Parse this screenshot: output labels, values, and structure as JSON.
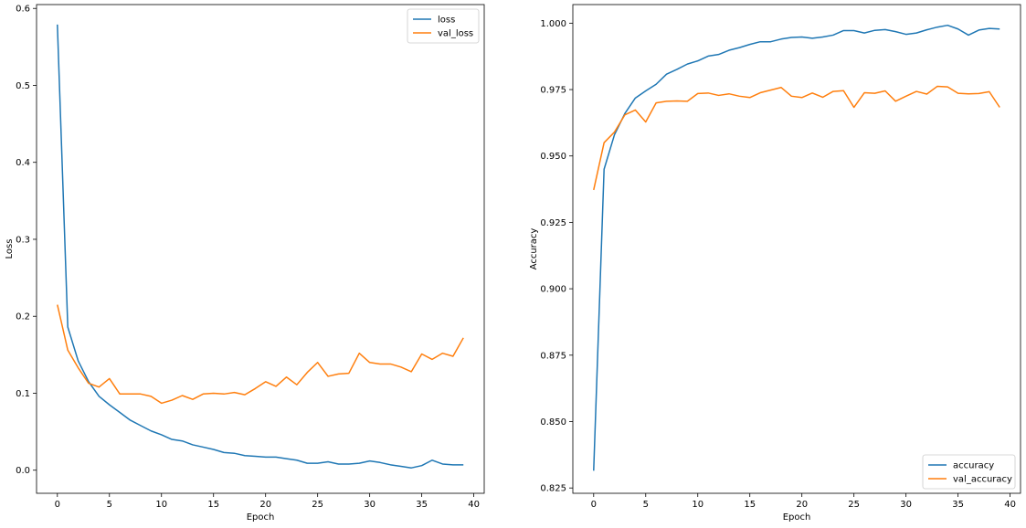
{
  "colors": {
    "series1": "#1f77b4",
    "series2": "#ff7f0e"
  },
  "chart_data": [
    {
      "type": "line",
      "xlabel": "Epoch",
      "ylabel": "Loss",
      "xlim": [
        -2,
        41
      ],
      "ylim": [
        -0.03,
        0.605
      ],
      "xticks": [
        0,
        5,
        10,
        15,
        20,
        25,
        30,
        35,
        40
      ],
      "yticks": [
        0.0,
        0.1,
        0.2,
        0.3,
        0.4,
        0.5,
        0.6
      ],
      "ytick_labels": [
        "0.0",
        "0.1",
        "0.2",
        "0.3",
        "0.4",
        "0.5",
        "0.6"
      ],
      "legend": "top-right",
      "grid": false,
      "x": [
        0,
        1,
        2,
        3,
        4,
        5,
        6,
        7,
        8,
        9,
        10,
        11,
        12,
        13,
        14,
        15,
        16,
        17,
        18,
        19,
        20,
        21,
        22,
        23,
        24,
        25,
        26,
        27,
        28,
        29,
        30,
        31,
        32,
        33,
        34,
        35,
        36,
        37,
        38,
        39
      ],
      "series": [
        {
          "name": "loss",
          "color": "#1f77b4",
          "values": [
            0.579,
            0.186,
            0.142,
            0.115,
            0.096,
            0.085,
            0.075,
            0.065,
            0.058,
            0.051,
            0.046,
            0.04,
            0.038,
            0.033,
            0.03,
            0.027,
            0.023,
            0.022,
            0.019,
            0.018,
            0.017,
            0.017,
            0.015,
            0.013,
            0.009,
            0.009,
            0.011,
            0.008,
            0.008,
            0.009,
            0.012,
            0.01,
            0.007,
            0.005,
            0.003,
            0.006,
            0.013,
            0.008,
            0.007,
            0.007
          ]
        },
        {
          "name": "val_loss",
          "color": "#ff7f0e",
          "values": [
            0.215,
            0.156,
            0.133,
            0.113,
            0.108,
            0.119,
            0.099,
            0.099,
            0.099,
            0.096,
            0.087,
            0.091,
            0.097,
            0.092,
            0.099,
            0.1,
            0.099,
            0.101,
            0.098,
            0.106,
            0.115,
            0.109,
            0.121,
            0.111,
            0.127,
            0.14,
            0.122,
            0.125,
            0.126,
            0.152,
            0.14,
            0.138,
            0.138,
            0.134,
            0.128,
            0.151,
            0.144,
            0.152,
            0.148,
            0.172
          ]
        }
      ]
    },
    {
      "type": "line",
      "xlabel": "Epoch",
      "ylabel": "Accuracy",
      "xlim": [
        -2,
        41
      ],
      "ylim": [
        0.823,
        1.007
      ],
      "xticks": [
        0,
        5,
        10,
        15,
        20,
        25,
        30,
        35,
        40
      ],
      "yticks": [
        0.825,
        0.85,
        0.875,
        0.9,
        0.925,
        0.95,
        0.975,
        1.0
      ],
      "ytick_labels": [
        "0.825",
        "0.850",
        "0.875",
        "0.900",
        "0.925",
        "0.950",
        "0.975",
        "1.000"
      ],
      "legend": "bottom-right",
      "grid": false,
      "x": [
        0,
        1,
        2,
        3,
        4,
        5,
        6,
        7,
        8,
        9,
        10,
        11,
        12,
        13,
        14,
        15,
        16,
        17,
        18,
        19,
        20,
        21,
        22,
        23,
        24,
        25,
        26,
        27,
        28,
        29,
        30,
        31,
        32,
        33,
        34,
        35,
        36,
        37,
        38,
        39
      ],
      "series": [
        {
          "name": "accuracy",
          "color": "#1f77b4",
          "values": [
            0.8315,
            0.945,
            0.958,
            0.966,
            0.9718,
            0.9745,
            0.977,
            0.9808,
            0.9826,
            0.9846,
            0.9858,
            0.9876,
            0.9882,
            0.9898,
            0.9908,
            0.992,
            0.993,
            0.993,
            0.994,
            0.9946,
            0.9948,
            0.9943,
            0.9948,
            0.9955,
            0.9972,
            0.9972,
            0.9963,
            0.9973,
            0.9976,
            0.9968,
            0.9958,
            0.9963,
            0.9975,
            0.9985,
            0.9992,
            0.9978,
            0.9955,
            0.9974,
            0.998,
            0.9978
          ]
        },
        {
          "name": "val_accuracy",
          "color": "#ff7f0e",
          "values": [
            0.9372,
            0.955,
            0.959,
            0.9655,
            0.9673,
            0.9628,
            0.97,
            0.9706,
            0.9707,
            0.9706,
            0.9735,
            0.9737,
            0.9728,
            0.9734,
            0.9725,
            0.972,
            0.9738,
            0.9748,
            0.9758,
            0.9725,
            0.972,
            0.9737,
            0.9721,
            0.9743,
            0.9746,
            0.9683,
            0.9738,
            0.9736,
            0.9745,
            0.9706,
            0.9725,
            0.9743,
            0.9733,
            0.9762,
            0.976,
            0.9736,
            0.9734,
            0.9735,
            0.9742,
            0.9683
          ]
        }
      ]
    }
  ]
}
